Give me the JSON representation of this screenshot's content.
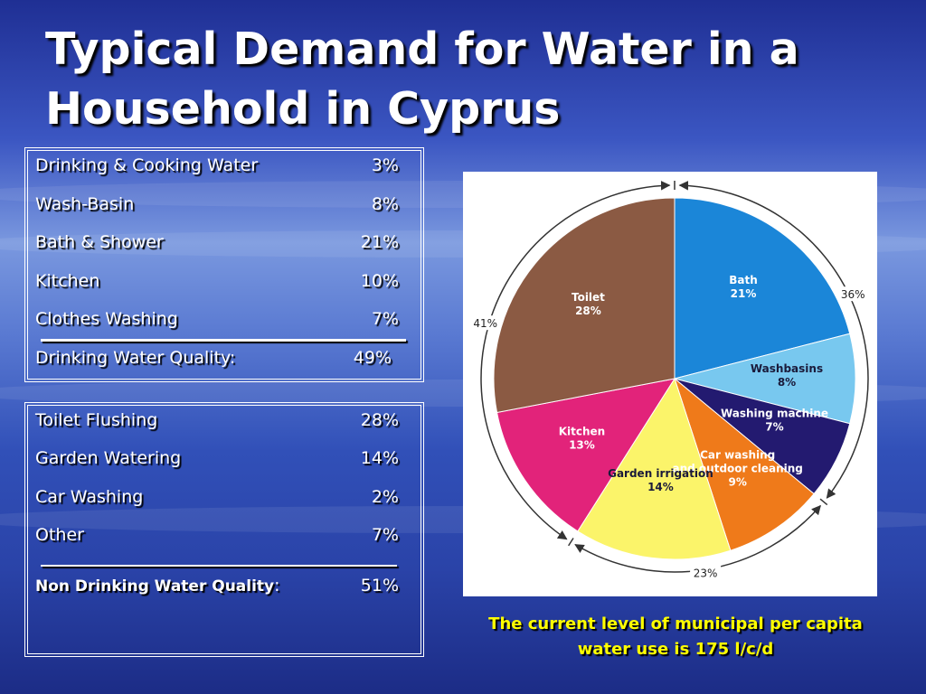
{
  "title": "Typical Demand for Water in a Household in Cyprus",
  "drinking_table": {
    "rows": [
      {
        "label": "Drinking & Cooking Water",
        "value": "3%"
      },
      {
        "label": "Wash-Basin",
        "value": "8%"
      },
      {
        "label": "Bath & Shower",
        "value": "21%"
      },
      {
        "label": "Kitchen",
        "value": "10%"
      },
      {
        "label": "Clothes Washing",
        "value": "7%"
      }
    ],
    "total": {
      "label": "Drinking Water Quality:",
      "value": "49%"
    }
  },
  "non_drinking_table": {
    "rows": [
      {
        "label": "Toilet Flushing",
        "value": "28%"
      },
      {
        "label": "Garden Watering",
        "value": "14%"
      },
      {
        "label": "Car Washing",
        "value": "2%"
      },
      {
        "label": "Other",
        "value": "7%"
      }
    ],
    "total": {
      "label": "Non Drinking Water Quality",
      "suffix": ":",
      "value": "51%"
    }
  },
  "note": "The current level of municipal per capita water use is 175 l/c/d",
  "chart_data": {
    "type": "pie",
    "slices": [
      {
        "label": "Bath",
        "pct_label": "21%",
        "value": 21,
        "color": "#1b86d8"
      },
      {
        "label": "Washbasins",
        "pct_label": "8%",
        "value": 8,
        "color": "#78c8ef"
      },
      {
        "label": "Washing machine",
        "pct_label": "7%",
        "value": 7,
        "color": "#231a70"
      },
      {
        "label": "Car washing and outdoor cleaning",
        "pct_label": "9%",
        "value": 9,
        "color": "#ef7a1a"
      },
      {
        "label": "Garden irrigation",
        "pct_label": "14%",
        "value": 14,
        "color": "#fbf46a"
      },
      {
        "label": "Kitchen",
        "pct_label": "13%",
        "value": 13,
        "color": "#e2237a"
      },
      {
        "label": "Toilet",
        "pct_label": "28%",
        "value": 28,
        "color": "#8b5a43"
      }
    ],
    "groups": [
      {
        "label": "36%"
      },
      {
        "label": "23%"
      },
      {
        "label": "41%"
      }
    ]
  }
}
